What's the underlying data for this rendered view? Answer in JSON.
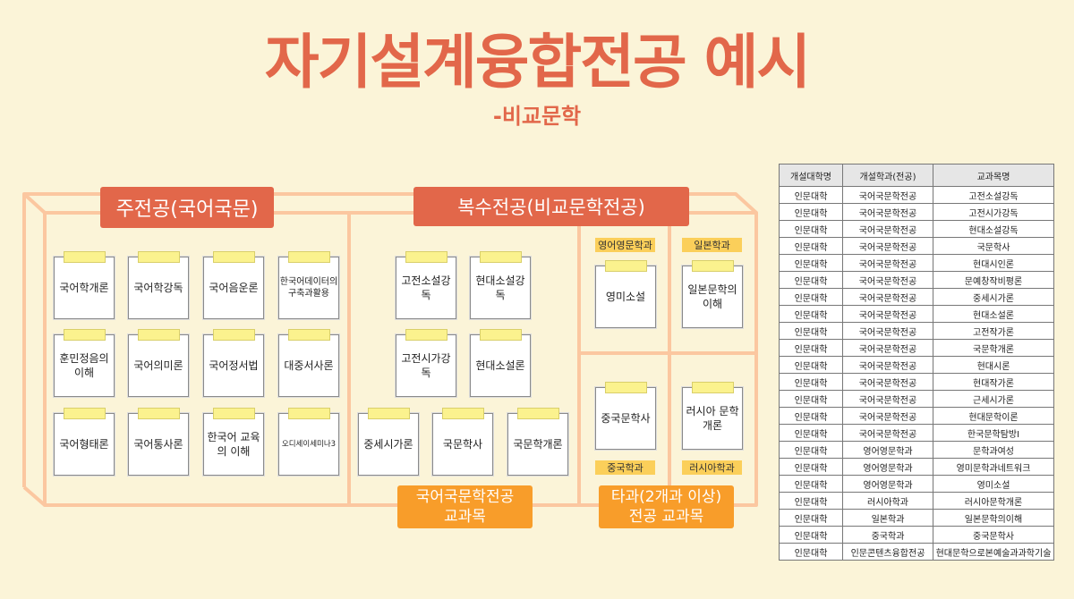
{
  "title": "자기설계융합전공 예시",
  "subtitle": "-비교문학",
  "main_major": {
    "label": "주전공(국어국문)",
    "courses": [
      "국어학개론",
      "국어학강독",
      "국어음운론",
      "한국어데이터의 구축과활용",
      "훈민정음의 이해",
      "국어의미론",
      "국어정서법",
      "대중서사론",
      "국어형태론",
      "국어통사론",
      "한국어 교육의 이해",
      "오디세이세미나3"
    ]
  },
  "double_major": {
    "label": "복수전공(비교문학전공)",
    "korean_courses": [
      "고전소설강독",
      "현대소설강독",
      "고전시가강독",
      "현대소설론",
      "중세시가론",
      "국문학사",
      "국문학개론"
    ],
    "korean_label": "국어국문학전공 교과목",
    "other_label": "타과(2개과 이상) 전공 교과목",
    "other": [
      {
        "dept": "영어영문학과",
        "course": "영미소설"
      },
      {
        "dept": "일본학과",
        "course": "일본문학의 이해"
      },
      {
        "dept": "중국학과",
        "course": "중국문학사"
      },
      {
        "dept": "러시아학과",
        "course": "러시아 문학개론"
      }
    ]
  },
  "table": {
    "headers": [
      "개설대학명",
      "개설학과(전공)",
      "교과목명"
    ],
    "rows": [
      [
        "인문대학",
        "국어국문학전공",
        "고전소설강독"
      ],
      [
        "인문대학",
        "국어국문학전공",
        "고전시가강독"
      ],
      [
        "인문대학",
        "국어국문학전공",
        "현대소설강독"
      ],
      [
        "인문대학",
        "국어국문학전공",
        "국문학사"
      ],
      [
        "인문대학",
        "국어국문학전공",
        "현대시인론"
      ],
      [
        "인문대학",
        "국어국문학전공",
        "문예창작비평론"
      ],
      [
        "인문대학",
        "국어국문학전공",
        "중세시가론"
      ],
      [
        "인문대학",
        "국어국문학전공",
        "현대소설론"
      ],
      [
        "인문대학",
        "국어국문학전공",
        "고전작가론"
      ],
      [
        "인문대학",
        "국어국문학전공",
        "국문학개론"
      ],
      [
        "인문대학",
        "국어국문학전공",
        "현대시론"
      ],
      [
        "인문대학",
        "국어국문학전공",
        "현대작가론"
      ],
      [
        "인문대학",
        "국어국문학전공",
        "근세시가론"
      ],
      [
        "인문대학",
        "국어국문학전공",
        "현대문학이론"
      ],
      [
        "인문대학",
        "국어국문학전공",
        "한국문학탐방I"
      ],
      [
        "인문대학",
        "영어영문학과",
        "문학과여성"
      ],
      [
        "인문대학",
        "영어영문학과",
        "영미문학과네트워크"
      ],
      [
        "인문대학",
        "영어영문학과",
        "영미소설"
      ],
      [
        "인문대학",
        "러시아학과",
        "러시아문학개론"
      ],
      [
        "인문대학",
        "일본학과",
        "일본문학의이해"
      ],
      [
        "인문대학",
        "중국학과",
        "중국문학사"
      ],
      [
        "인문대학",
        "인문콘텐츠융합전공",
        "현대문학으로본예술과과학기술"
      ]
    ]
  },
  "colors": {
    "background": "#fbf4d8",
    "header": "#e2674a",
    "sublabel": "#f89d2a",
    "frame": "#fbc7a0",
    "tape": "#fbf28e",
    "tag": "#fbcf5a"
  }
}
